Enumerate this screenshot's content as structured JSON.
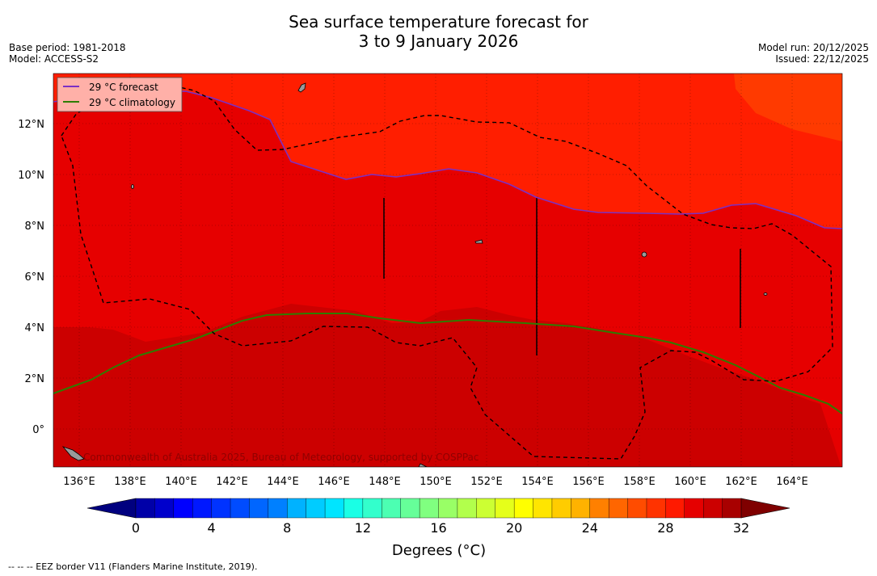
{
  "title": {
    "line1": "Sea surface temperature forecast for",
    "line2": "3 to 9 January 2026"
  },
  "left_meta": {
    "base_period": "Base period: 1981-2018",
    "model": "Model: ACCESS-S2"
  },
  "right_meta": {
    "model_run": "Model run: 20/12/2025",
    "issued": "Issued: 22/12/2025"
  },
  "map": {
    "lat_labels": [
      "12°N",
      "10°N",
      "8°N",
      "6°N",
      "4°N",
      "2°N",
      "0°"
    ],
    "lon_labels": [
      "136°E",
      "138°E",
      "140°E",
      "142°E",
      "144°E",
      "146°E",
      "148°E",
      "150°E",
      "152°E",
      "154°E",
      "156°E",
      "158°E",
      "160°E",
      "162°E",
      "164°E"
    ],
    "legend": {
      "forecast": "29 °C  forecast",
      "climatology": "29 °C  climatology"
    },
    "watermark": "Commonwealth of Australia 2025, Bureau of Meteorology, supported by COSPPac"
  },
  "colorbar": {
    "tick_labels": [
      "0",
      "4",
      "8",
      "12",
      "16",
      "20",
      "24",
      "28",
      "32"
    ],
    "tick_values": [
      0,
      4,
      8,
      12,
      16,
      20,
      24,
      28,
      32
    ],
    "min": 0,
    "max": 32,
    "step": 1,
    "label": "Degrees (°C)",
    "colors": [
      "#00007f",
      "#0000a8",
      "#0000cc",
      "#0000ff",
      "#0018ff",
      "#0033ff",
      "#004cff",
      "#0066ff",
      "#0080ff",
      "#0099ff",
      "#00b2ff",
      "#00ccff",
      "#00e5ff",
      "#1affe5",
      "#33ffcc",
      "#4cffb2",
      "#66ff99",
      "#80ff80",
      "#99ff66",
      "#b2ff4c",
      "#ccff33",
      "#e5ff1a",
      "#ffff00",
      "#ffe500",
      "#ffcc00",
      "#ffb200",
      "#ff9900",
      "#ff8000",
      "#ff6600",
      "#ff4c00",
      "#ff3300",
      "#ff1a00",
      "#e50000",
      "#cc0000",
      "#a80000",
      "#7f0000"
    ]
  },
  "footnote": "--  --  -- EEZ border V11 (Flanders Marine Institute, 2019).",
  "colors": {
    "sst_top": "#ff1e00",
    "sst_orange": "#ff3a00",
    "sst_mid": "#e60000",
    "sst_low": "#cc0000",
    "forecast_line": "#7b2fc4",
    "climatology_line": "#2e7d00"
  }
}
